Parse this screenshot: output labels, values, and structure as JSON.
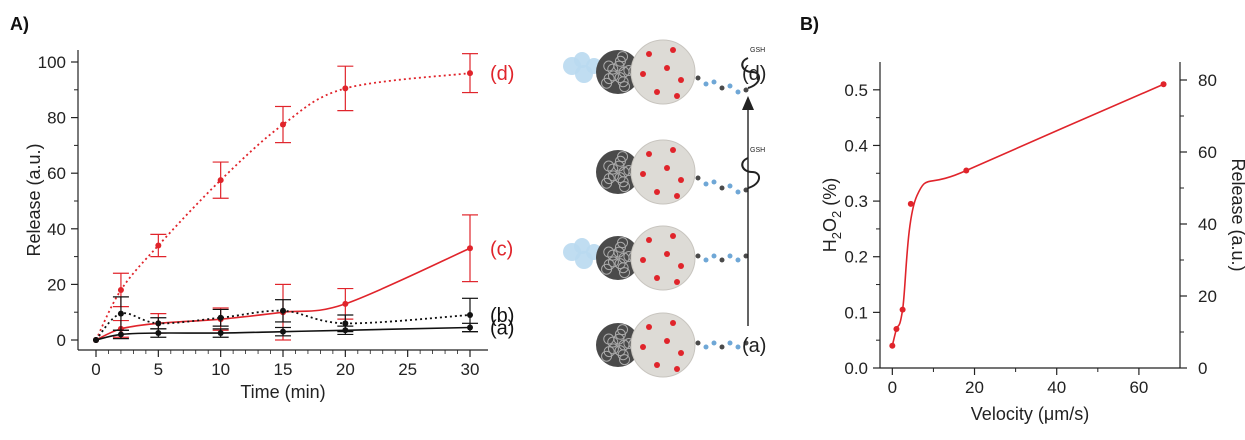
{
  "panels": {
    "a": "A)",
    "b": "B)"
  },
  "chart_data": [
    {
      "type": "line",
      "title": "",
      "xlabel": "Time (min)",
      "ylabel": "Release (a.u.)",
      "xlim": [
        0,
        30
      ],
      "ylim": [
        0,
        100
      ],
      "x_ticks": [
        "0",
        "5",
        "10",
        "15",
        "20",
        "25",
        "30"
      ],
      "y_ticks": [
        "0",
        "20",
        "40",
        "60",
        "80",
        "100"
      ],
      "grid": false,
      "series": [
        {
          "name": "(d)",
          "color": "#e0242b",
          "line": "dotted",
          "x": [
            0,
            2,
            5,
            10,
            15,
            20,
            30
          ],
          "y": [
            0,
            18,
            34,
            57.5,
            77.5,
            90.5,
            96
          ],
          "err": [
            0,
            6,
            4,
            6.5,
            6.5,
            8,
            7
          ]
        },
        {
          "name": "(c)",
          "color": "#e0242b",
          "line": "solid",
          "x": [
            0,
            2,
            5,
            10,
            15,
            20,
            30
          ],
          "y": [
            0,
            4,
            6,
            7.5,
            10,
            13,
            33
          ],
          "err": [
            0,
            3,
            3.5,
            4,
            10,
            5.5,
            12
          ]
        },
        {
          "name": "(b)",
          "color": "#111111",
          "line": "dotted",
          "x": [
            0,
            2,
            5,
            10,
            15,
            20,
            30
          ],
          "y": [
            0,
            9.5,
            6,
            8,
            10.5,
            6,
            9
          ],
          "err": [
            0,
            6,
            2,
            3,
            4,
            3,
            6
          ]
        },
        {
          "name": "(a)",
          "color": "#111111",
          "line": "solid",
          "x": [
            0,
            2,
            5,
            10,
            15,
            20,
            30
          ],
          "y": [
            0,
            2,
            2.5,
            2.5,
            3,
            3.5,
            4.5
          ],
          "err": [
            0,
            1.5,
            1.5,
            1.5,
            1.5,
            1.5,
            1.5
          ]
        }
      ],
      "scheme_labels": [
        "(d)",
        "(a)"
      ],
      "scheme_glyphs": [
        "GSH",
        "GSH"
      ]
    },
    {
      "type": "scatter",
      "title": "",
      "xlabel": "Velocity (μm/s)",
      "ylabel_left_parts": [
        "H",
        "2",
        "O",
        "2",
        " (%)"
      ],
      "ylabel_right": "Release (a.u.)",
      "xlim": [
        -3,
        70
      ],
      "ylim": [
        0,
        0.55
      ],
      "y2lim": [
        0,
        85
      ],
      "x_ticks": [
        "0",
        "20",
        "40",
        "60"
      ],
      "y_ticks": [
        "0.0",
        "0.1",
        "0.2",
        "0.3",
        "0.4",
        "0.5"
      ],
      "y2_ticks": [
        "0",
        "20",
        "40",
        "60",
        "80"
      ],
      "grid": false,
      "series": [
        {
          "color": "#e0242b",
          "x": [
            0,
            1,
            2.5,
            4.5,
            18,
            66
          ],
          "y": [
            0.04,
            0.07,
            0.105,
            0.295,
            0.355,
            0.51
          ]
        }
      ]
    }
  ]
}
